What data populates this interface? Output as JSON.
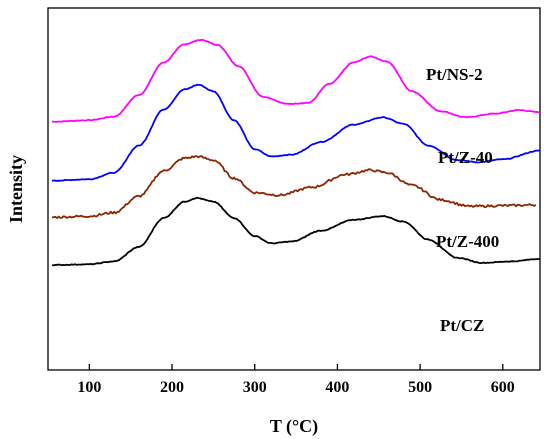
{
  "chart_data": {
    "type": "line",
    "xlabel": "T (°C)",
    "ylabel": "Intensity",
    "xlim": [
      50,
      645
    ],
    "ylim": [
      0,
      1
    ],
    "xticks": [
      100,
      200,
      300,
      400,
      500,
      600
    ],
    "grid": false,
    "series": [
      {
        "name": "Pt/NS-2",
        "color": "#ff00ff",
        "noise": 0.002,
        "points": [
          [
            55,
            0.686
          ],
          [
            100,
            0.69
          ],
          [
            130,
            0.7
          ],
          [
            160,
            0.76
          ],
          [
            190,
            0.85
          ],
          [
            215,
            0.9
          ],
          [
            235,
            0.912
          ],
          [
            255,
            0.898
          ],
          [
            280,
            0.84
          ],
          [
            310,
            0.755
          ],
          [
            340,
            0.735
          ],
          [
            365,
            0.738
          ],
          [
            390,
            0.79
          ],
          [
            420,
            0.85
          ],
          [
            440,
            0.866
          ],
          [
            460,
            0.852
          ],
          [
            490,
            0.77
          ],
          [
            525,
            0.715
          ],
          [
            555,
            0.698
          ],
          [
            590,
            0.708
          ],
          [
            620,
            0.718
          ],
          [
            645,
            0.712
          ]
        ]
      },
      {
        "name": "Pt/Z-40",
        "color": "#0000ff",
        "noise": 0.002,
        "points": [
          [
            55,
            0.523
          ],
          [
            100,
            0.527
          ],
          [
            130,
            0.545
          ],
          [
            160,
            0.62
          ],
          [
            190,
            0.72
          ],
          [
            215,
            0.775
          ],
          [
            232,
            0.788
          ],
          [
            250,
            0.77
          ],
          [
            275,
            0.69
          ],
          [
            300,
            0.61
          ],
          [
            320,
            0.59
          ],
          [
            345,
            0.595
          ],
          [
            380,
            0.63
          ],
          [
            420,
            0.678
          ],
          [
            455,
            0.698
          ],
          [
            480,
            0.68
          ],
          [
            510,
            0.62
          ],
          [
            545,
            0.58
          ],
          [
            570,
            0.574
          ],
          [
            600,
            0.582
          ],
          [
            645,
            0.606
          ]
        ]
      },
      {
        "name": "Pt/Z-400",
        "color": "#8b2500",
        "noise": 0.006,
        "points": [
          [
            55,
            0.422
          ],
          [
            100,
            0.425
          ],
          [
            130,
            0.435
          ],
          [
            160,
            0.48
          ],
          [
            190,
            0.55
          ],
          [
            215,
            0.585
          ],
          [
            230,
            0.59
          ],
          [
            250,
            0.58
          ],
          [
            275,
            0.53
          ],
          [
            300,
            0.49
          ],
          [
            330,
            0.483
          ],
          [
            370,
            0.505
          ],
          [
            410,
            0.54
          ],
          [
            440,
            0.552
          ],
          [
            460,
            0.545
          ],
          [
            490,
            0.51
          ],
          [
            525,
            0.47
          ],
          [
            560,
            0.452
          ],
          [
            600,
            0.454
          ],
          [
            640,
            0.456
          ]
        ]
      },
      {
        "name": "Pt/CZ",
        "color": "#000000",
        "noise": 0.002,
        "points": [
          [
            55,
            0.29
          ],
          [
            100,
            0.292
          ],
          [
            130,
            0.3
          ],
          [
            160,
            0.34
          ],
          [
            190,
            0.42
          ],
          [
            215,
            0.465
          ],
          [
            230,
            0.475
          ],
          [
            250,
            0.465
          ],
          [
            275,
            0.42
          ],
          [
            300,
            0.37
          ],
          [
            320,
            0.35
          ],
          [
            345,
            0.355
          ],
          [
            380,
            0.385
          ],
          [
            420,
            0.415
          ],
          [
            455,
            0.425
          ],
          [
            480,
            0.41
          ],
          [
            510,
            0.36
          ],
          [
            545,
            0.31
          ],
          [
            575,
            0.296
          ],
          [
            610,
            0.3
          ],
          [
            645,
            0.307
          ]
        ]
      }
    ]
  }
}
